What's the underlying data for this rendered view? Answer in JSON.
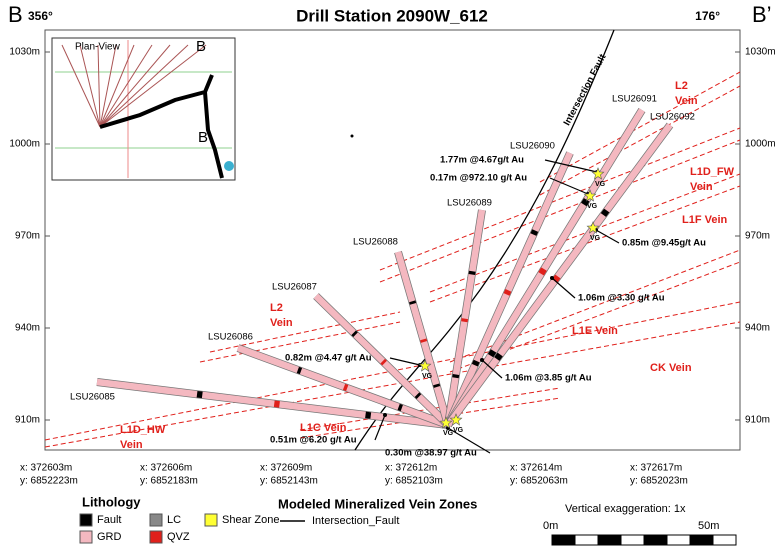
{
  "header": {
    "section": "B",
    "left_bearing": "356°",
    "title": "Drill Station 2090W_612",
    "right_bearing": "176°",
    "section_end": "B’"
  },
  "elevation_labels": [
    "1030m",
    "1000m",
    "970m",
    "940m",
    "910m"
  ],
  "coordinates": [
    {
      "x": "x: 372603m",
      "y": "y: 6852223m"
    },
    {
      "x": "x: 372606m",
      "y": "y: 6852183m"
    },
    {
      "x": "x: 372609m",
      "y": "y: 6852143m"
    },
    {
      "x": "x: 372612m",
      "y": "y: 6852103m"
    },
    {
      "x": "x: 372614m",
      "y": "y: 6852063m"
    },
    {
      "x": "x: 372617m",
      "y": "y: 6852023m"
    }
  ],
  "drill_holes": [
    "LSU26085",
    "LSU26086",
    "LSU26087",
    "LSU26088",
    "LSU26089",
    "LSU26090",
    "LSU26091",
    "LSU26092"
  ],
  "veins": [
    [
      "L2",
      "Vein"
    ],
    [
      "L1D_FW",
      "Vein"
    ],
    [
      "L1F Vein"
    ],
    [
      "L2",
      "Vein"
    ],
    [
      "L1E Vein"
    ],
    [
      "CK Vein"
    ],
    [
      "L1D_HW",
      "Vein"
    ],
    [
      "L1C Vein"
    ]
  ],
  "intercepts": [
    "1.77m @4.67g/t Au",
    "0.17m @972.10 g/t Au",
    "0.85m @9.45g/t Au",
    "1.06m @3.30 g/t Au",
    "1.06m @3.85 g/t Au",
    "0.82m @4.47 g/t Au",
    "0.51m @6.20 g/t Au",
    "0.30m @38.97 g/t Au"
  ],
  "visible_gold": [
    "VG",
    "VG",
    "VG",
    "VG",
    "VG",
    "VG"
  ],
  "fault_label": "Intersection Fault",
  "inset": {
    "title": "Plan-View",
    "labels": [
      "B",
      "B"
    ]
  },
  "legend": {
    "title": "Lithology",
    "items": [
      "Fault",
      "LC",
      "Shear Zone",
      "GRD",
      "QVZ"
    ],
    "vein_title": "Modeled Mineralized Vein Zones",
    "fault": "Intersection_Fault"
  },
  "scale": {
    "exaggeration": "Vertical exaggeration: 1x",
    "start": "0m",
    "end": "50m"
  }
}
